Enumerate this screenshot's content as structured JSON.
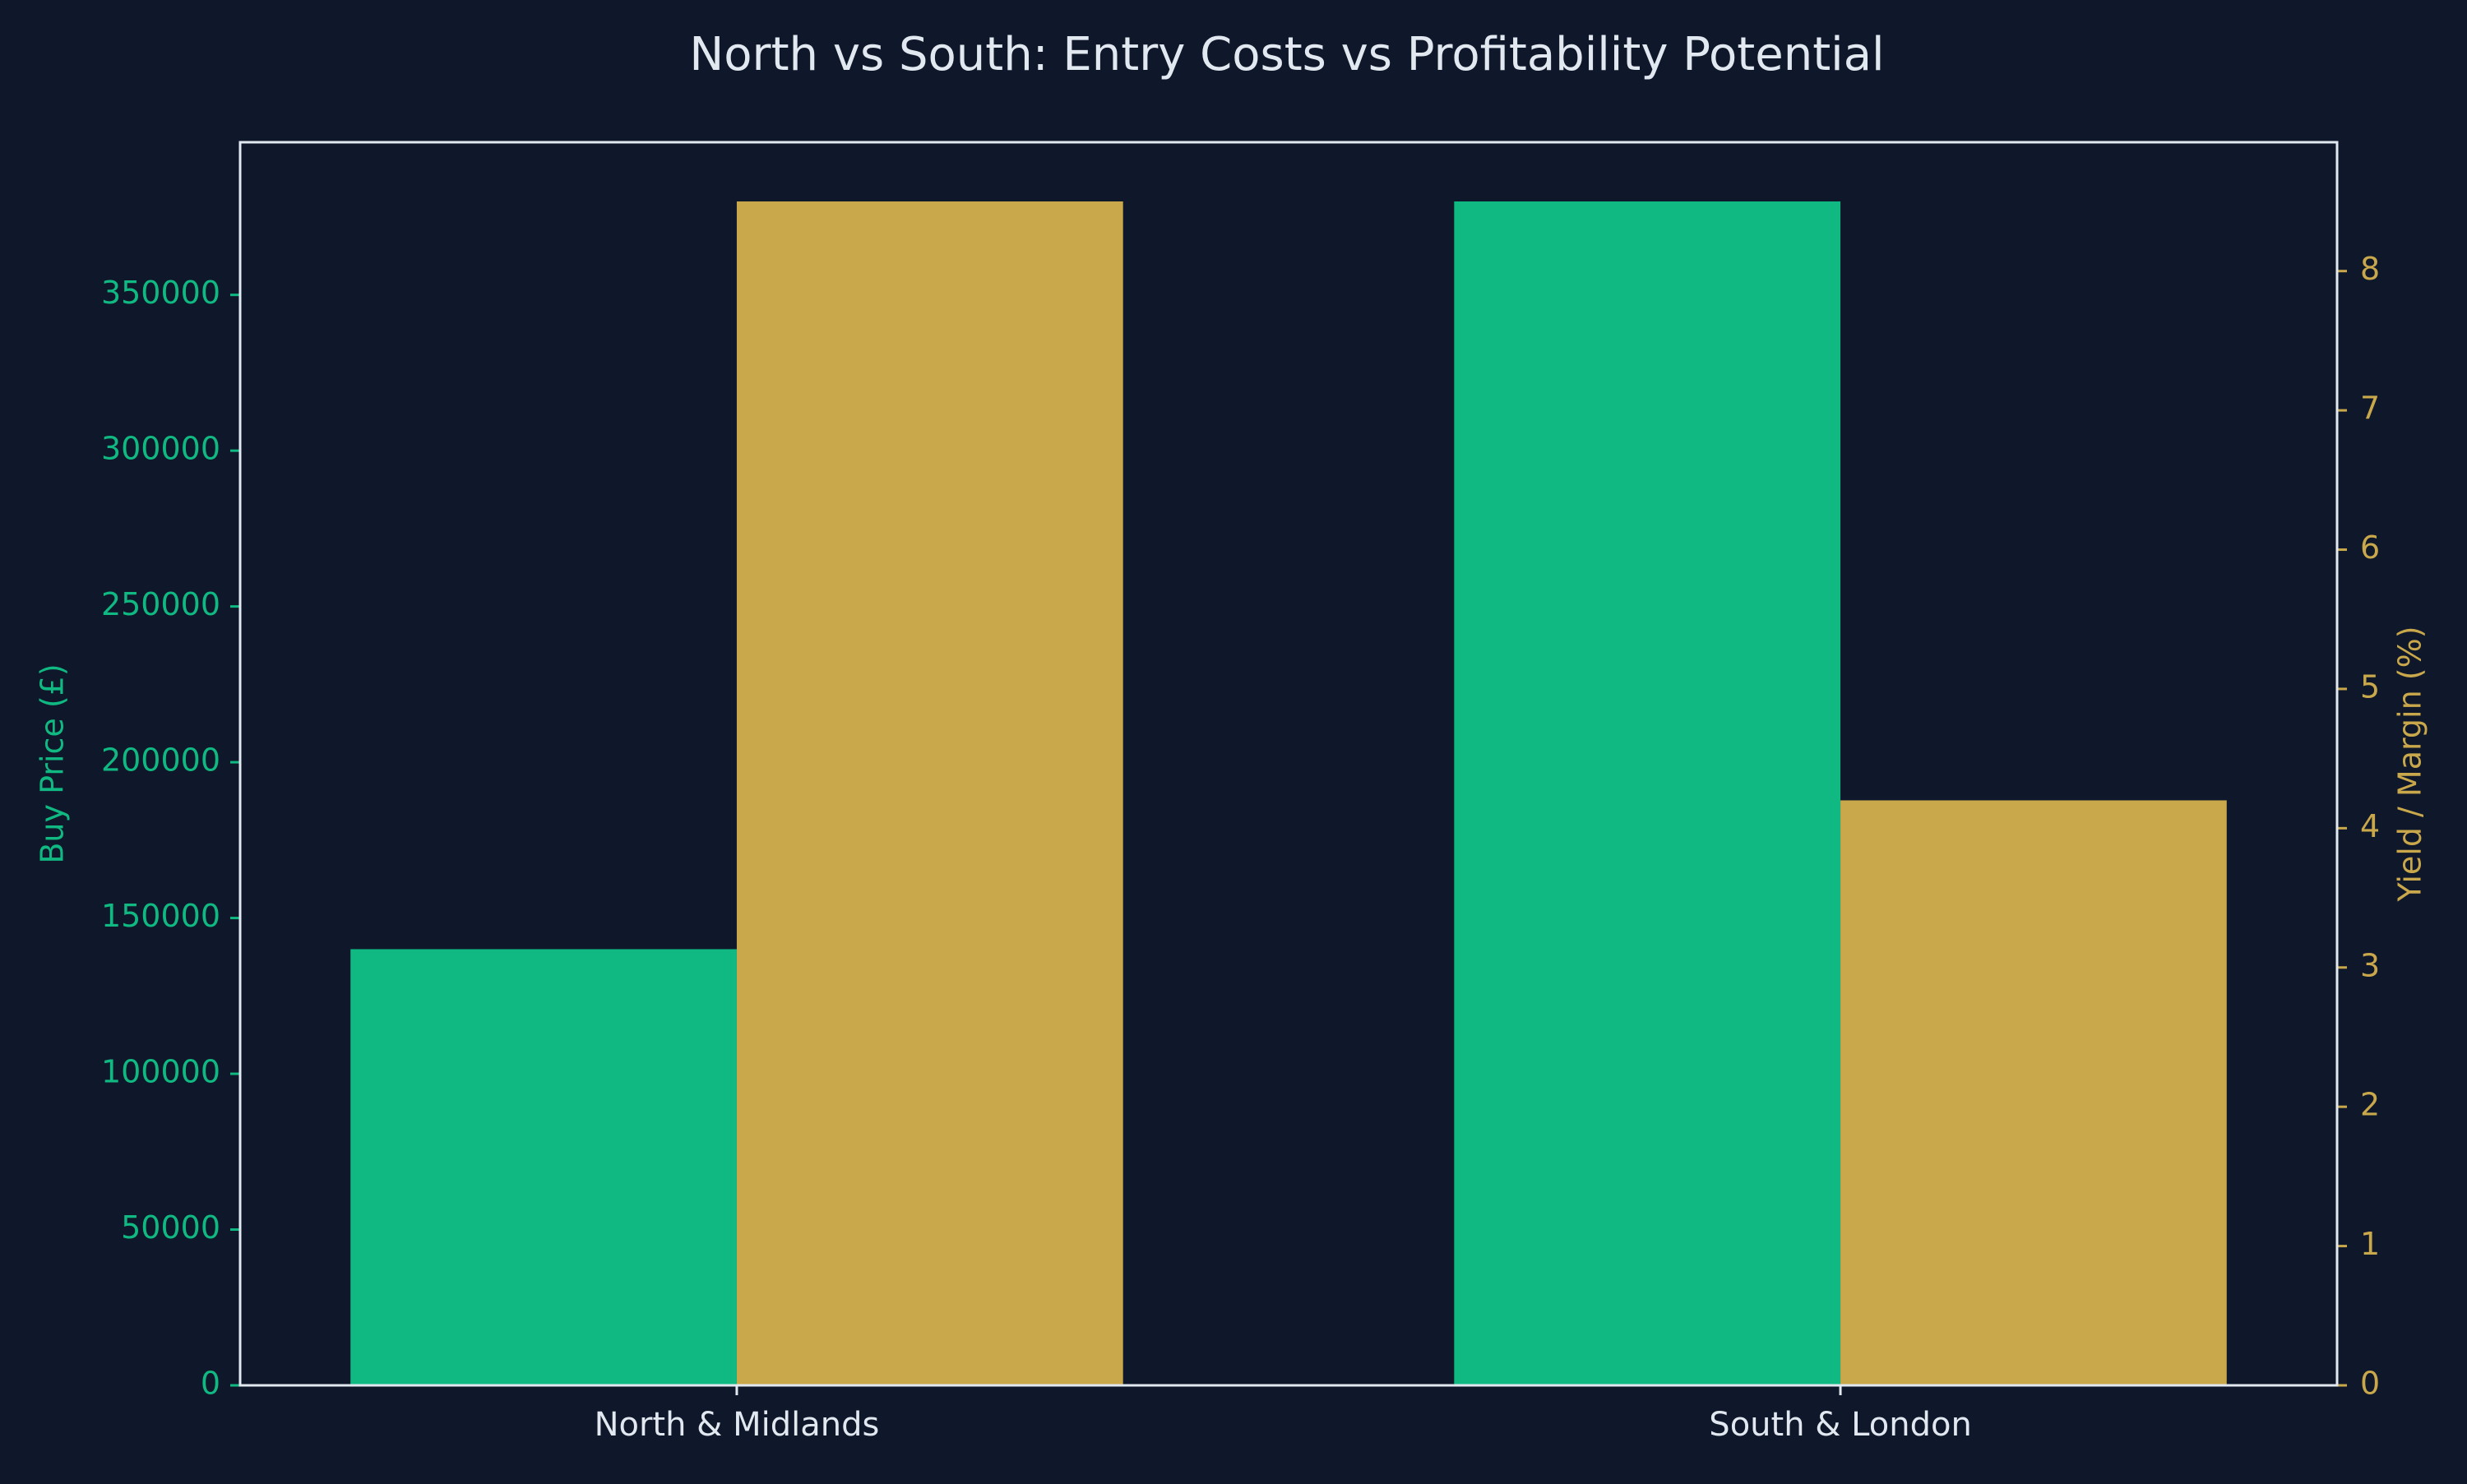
{
  "chart_data": {
    "type": "bar",
    "title": "North vs South: Entry Costs vs Profitability Potential",
    "categories": [
      "North & Midlands",
      "South & London"
    ],
    "series": [
      {
        "axis": "left",
        "color": "#10b981",
        "values": [
          140000,
          380000
        ]
      },
      {
        "axis": "right",
        "color": "#c9a84c",
        "values": [
          8.5,
          4.2
        ]
      }
    ],
    "left_axis": {
      "label": "Buy Price (£)",
      "color": "#10b981",
      "ylim": [
        0,
        399000
      ],
      "ticks": [
        0,
        50000,
        100000,
        150000,
        200000,
        250000,
        300000,
        350000
      ]
    },
    "right_axis": {
      "label": "Yield / Margin (%)",
      "color": "#c9a84c",
      "ylim": [
        0,
        8.925
      ],
      "ticks": [
        0,
        1,
        2,
        3,
        4,
        5,
        6,
        7,
        8
      ]
    },
    "background": "#0f172a",
    "frame_color": "#e2e8f0",
    "text_color": "#e2e8f0",
    "grid": false,
    "legend": "none"
  }
}
